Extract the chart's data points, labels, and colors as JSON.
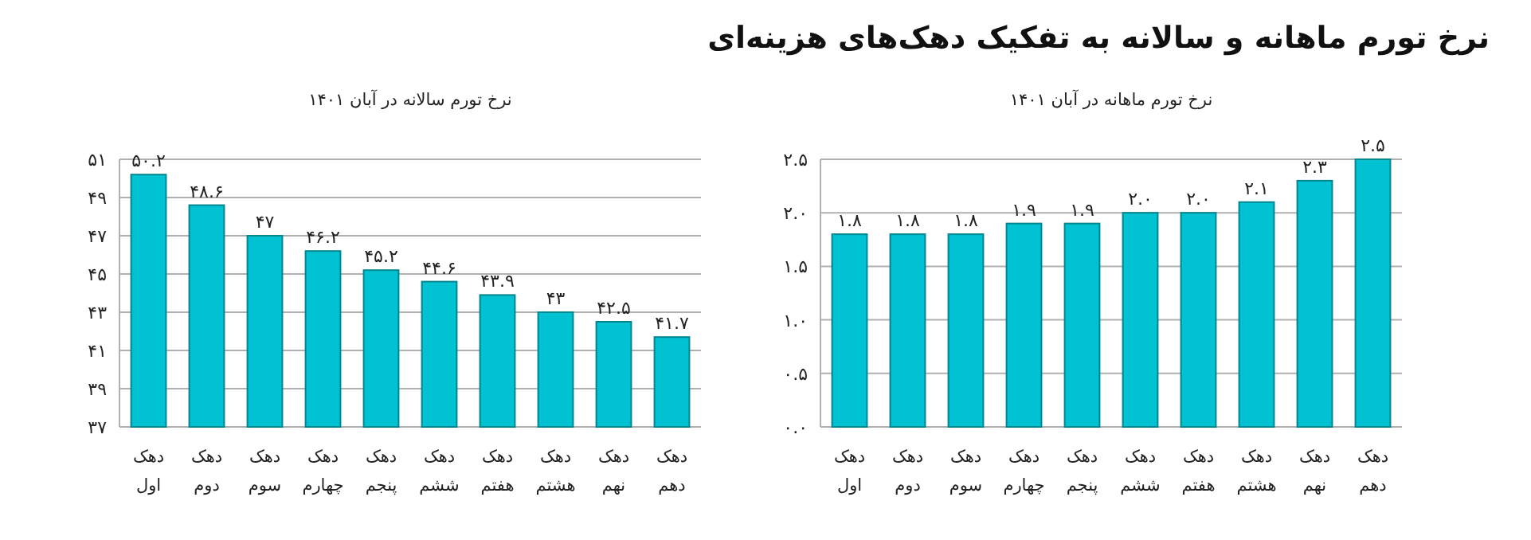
{
  "chart_data": [
    {
      "type": "other",
      "title": "نرخ تورم ماهانه و سالانه به تفکیک دهک‌های هزینه‌ای"
    },
    {
      "type": "bar",
      "title": "نرخ تورم سالانه در آبان ۱۴۰۱",
      "categories": [
        "دهک اول",
        "دهک دوم",
        "دهک سوم",
        "دهک چهارم",
        "دهک پنجم",
        "دهک ششم",
        "دهک هفتم",
        "دهک هشتم",
        "دهک نهم",
        "دهک دهم"
      ],
      "values": [
        50.2,
        48.6,
        47,
        46.2,
        45.2,
        44.6,
        43.9,
        43,
        42.5,
        41.7
      ],
      "value_labels": [
        "۵۰.۲",
        "۴۸.۶",
        "۴۷",
        "۴۶.۲",
        "۴۵.۲",
        "۴۴.۶",
        "۴۳.۹",
        "۴۳",
        "۴۲.۵",
        "۴۱.۷"
      ],
      "color": "#00c2d2",
      "ylim": [
        37,
        51
      ],
      "yticks": [
        {
          "value": 37,
          "label": "۳۷"
        },
        {
          "value": 39,
          "label": "۳۹"
        },
        {
          "value": 41,
          "label": "۴۱"
        },
        {
          "value": 43,
          "label": "۴۳"
        },
        {
          "value": 45,
          "label": "۴۵"
        },
        {
          "value": 47,
          "label": "۴۷"
        },
        {
          "value": 49,
          "label": "۴۹"
        },
        {
          "value": 51,
          "label": "۵۱"
        }
      ],
      "grid": "y"
    },
    {
      "type": "bar",
      "title": "نرخ تورم ماهانه در آبان ۱۴۰۱",
      "categories": [
        "دهک اول",
        "دهک دوم",
        "دهک سوم",
        "دهک چهارم",
        "دهک پنجم",
        "دهک ششم",
        "دهک هفتم",
        "دهک هشتم",
        "دهک نهم",
        "دهک دهم"
      ],
      "values": [
        1.8,
        1.8,
        1.8,
        1.9,
        1.9,
        2.0,
        2.0,
        2.1,
        2.3,
        2.5
      ],
      "value_labels": [
        "۱.۸",
        "۱.۸",
        "۱.۸",
        "۱.۹",
        "۱.۹",
        "۲.۰",
        "۲.۰",
        "۲.۱",
        "۲.۳",
        "۲.۵"
      ],
      "color": "#00c2d2",
      "ylim": [
        0,
        2.5
      ],
      "yticks": [
        {
          "value": 0,
          "label": "۰.۰"
        },
        {
          "value": 0.5,
          "label": "۰.۵"
        },
        {
          "value": 1,
          "label": "۱.۰"
        },
        {
          "value": 1.5,
          "label": "۱.۵"
        },
        {
          "value": 2,
          "label": "۲.۰"
        },
        {
          "value": 2.5,
          "label": "۲.۵"
        }
      ],
      "grid": "y"
    }
  ]
}
